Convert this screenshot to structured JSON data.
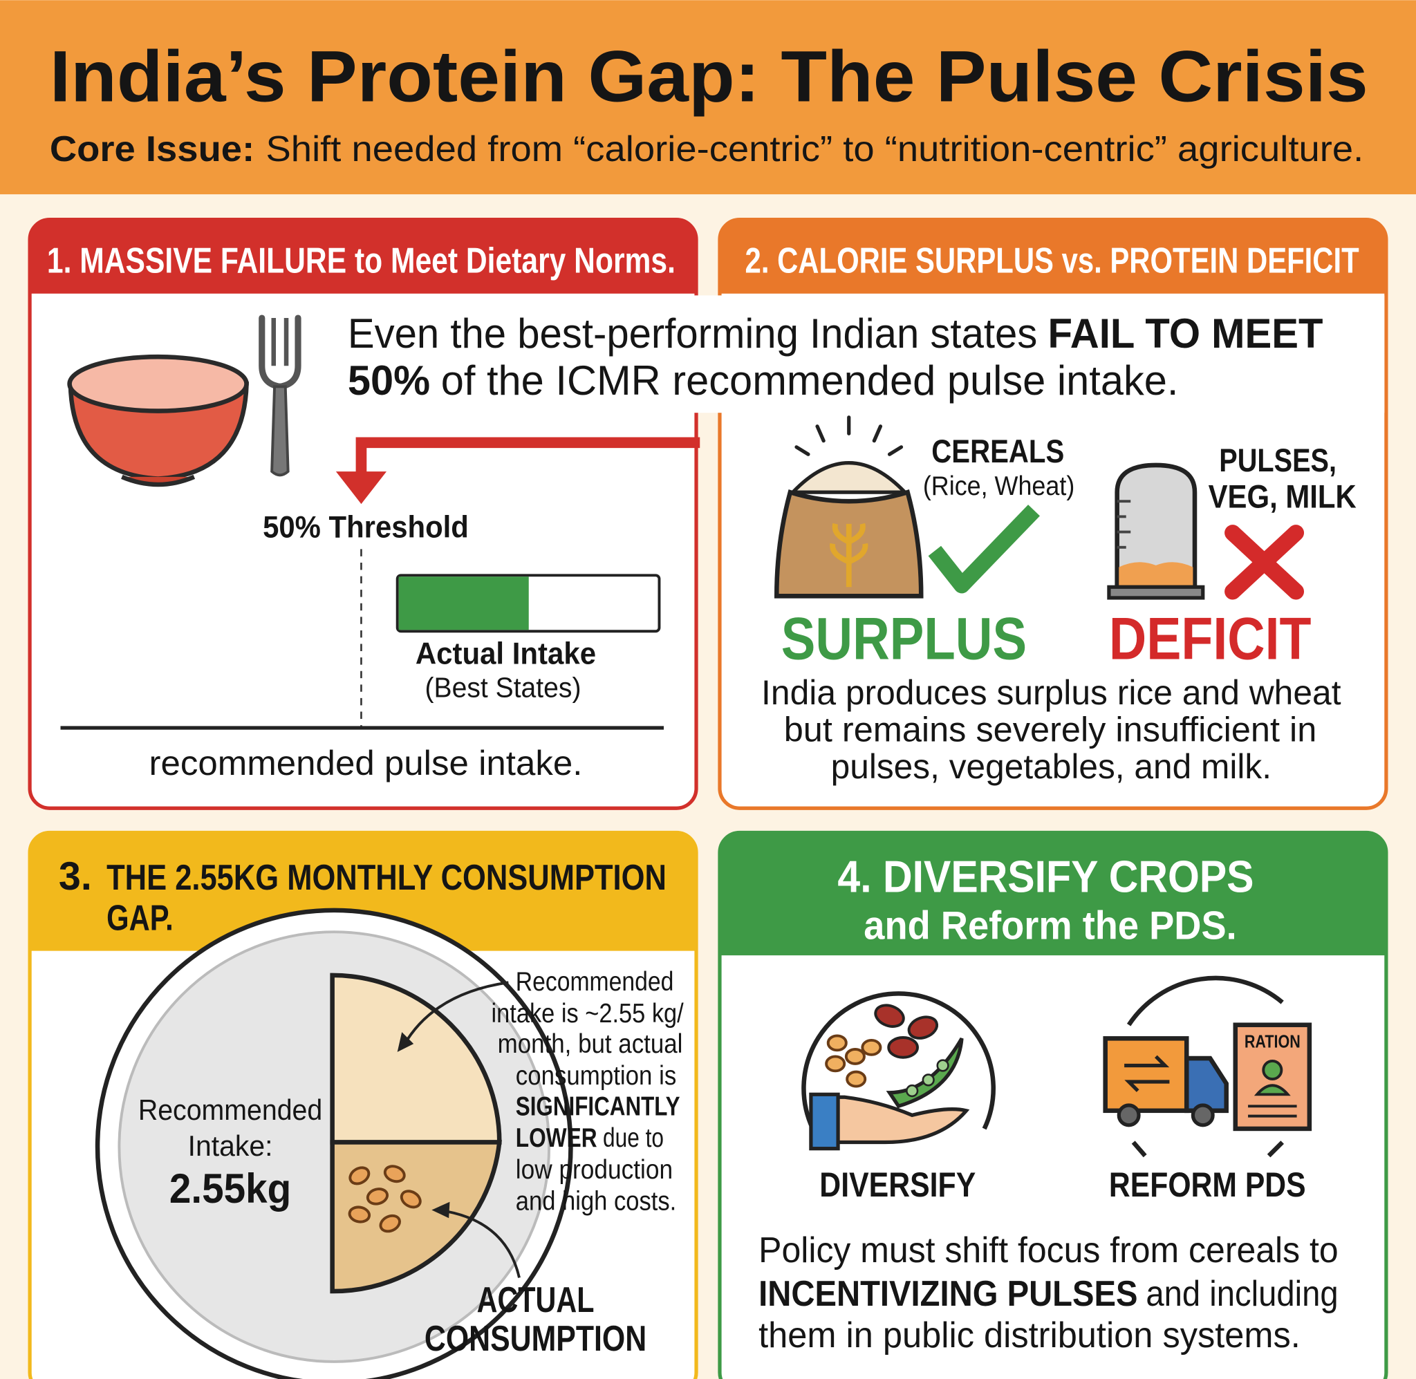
{
  "header": {
    "title": "India’s Protein Gap: The Pulse Crisis",
    "subtitle_label": "Core Issue:",
    "subtitle": "Shift needed from “calorie-centric” to “nutrition-centric” agriculture."
  },
  "panel_1": {
    "heading": "1. MASSIVE FAILURE to Meet Dietary Norms.",
    "statement": {
      "line_1": "Even the best-performing Indian states",
      "line_1_bold": "FAIL TO MEET",
      "line_2_bold": "50%",
      "line_2": "of the ICMR recommended pulse intake."
    },
    "threshold_label": "50% Threshold",
    "actual_label": "Actual Intake",
    "actual_sublabel": "(Best States)",
    "footer": "recommended pulse intake."
  },
  "panel_2": {
    "heading": "2. CALORIE SURPLUS vs. PROTEIN DEFICIT",
    "cereals_label": "CEREALS",
    "cereals_sublabel": "(Rice, Wheat)",
    "pulses_label": [
      "PULSES,",
      "VEG, MILK"
    ],
    "surplus": "SURPLUS",
    "deficit": "DEFICIT",
    "text": [
      "India produces surplus rice and wheat",
      "but remains severely insufficient in",
      "pulses, vegetables, and milk."
    ]
  },
  "panel_3": {
    "number": "3.",
    "heading": [
      "THE 2.55KG MONTHLY CONSUMPTION",
      "GAP."
    ],
    "plate_label": [
      "Recommended",
      "Intake:"
    ],
    "plate_value": "2.55kg",
    "note": {
      "line_1": "Recommended",
      "line_2": "intake is ~2.55 kg/",
      "line_3": "month, but actual",
      "line_4": "consumption is",
      "line_5_bold": "SIGNIFICANTLY",
      "line_6_bold": "LOWER",
      "line_6": "due to",
      "line_7": "low production",
      "line_8": "and high costs."
    },
    "actual_label": [
      "ACTUAL",
      "CONSUMPTION"
    ]
  },
  "panel_4": {
    "heading": [
      "4. DIVERSIFY CROPS",
      "and Reform the PDS."
    ],
    "ration_label": "RATION",
    "diversify_label": "DIVERSIFY",
    "reform_label": "REFORM PDS",
    "text": {
      "line_1": "Policy must shift focus from cereals to",
      "line_2_bold": "INCENTIVIZING PULSES",
      "line_2": "and including",
      "line_3": "them in public distribution systems."
    }
  }
}
